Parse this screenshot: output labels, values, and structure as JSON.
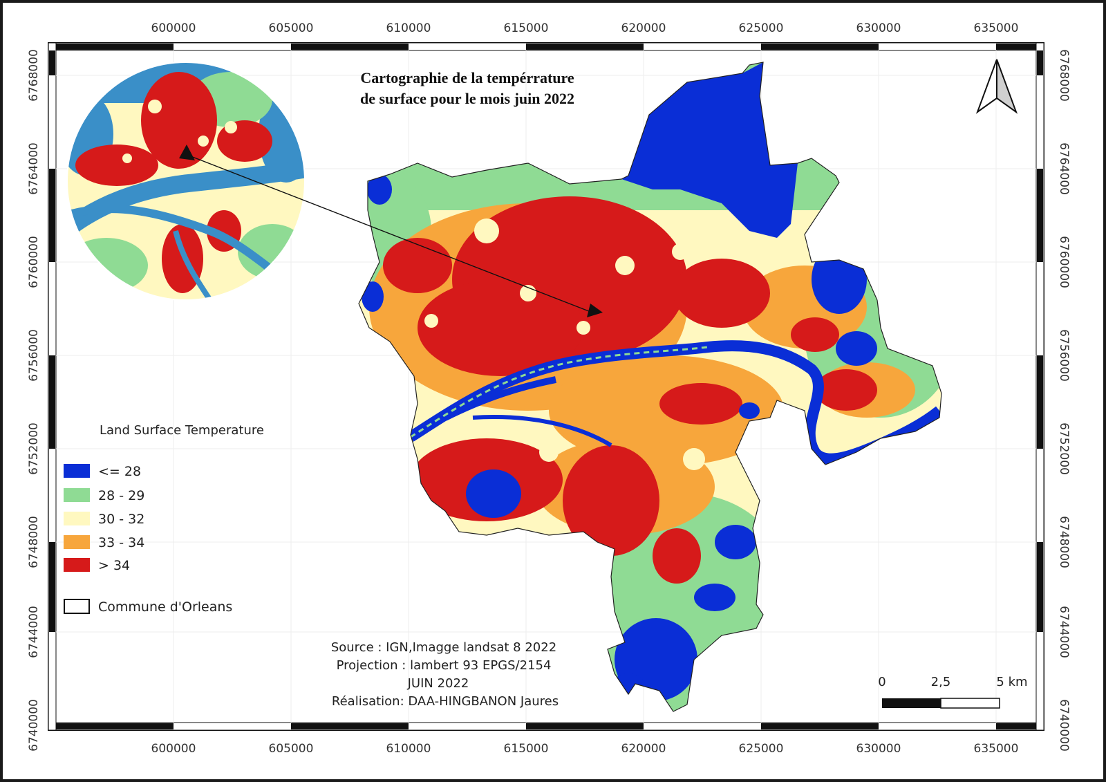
{
  "map": {
    "title_line1": "Cartographie de la tempérrature",
    "title_line2": "de surface pour le mois juin 2022",
    "x_ticks": [
      "600000",
      "605000",
      "610000",
      "615000",
      "620000",
      "625000",
      "630000",
      "635000"
    ],
    "y_ticks": [
      "6768000",
      "6764000",
      "6760000",
      "6756000",
      "6752000",
      "6748000",
      "6744000",
      "6740000"
    ]
  },
  "legend": {
    "title": "Land Surface Temperature",
    "items": [
      {
        "label": "<= 28",
        "color": "#0a2ed6"
      },
      {
        "label": "28 - 29",
        "color": "#8fdb94"
      },
      {
        "label": "30 - 32",
        "color": "#fff8c0"
      },
      {
        "label": "33 - 34",
        "color": "#f7a63c"
      },
      {
        "label": "> 34",
        "color": "#d61a1a"
      }
    ],
    "boundary_label": "Commune d'Orleans"
  },
  "credits": {
    "source": "Source : IGN,Imagge landsat 8 2022",
    "projection": "Projection : lambert 93 EPGS/2154",
    "date": "JUIN 2022",
    "author": "Réalisation: DAA-HINGBANON Jaures"
  },
  "scale_bar": {
    "labels": [
      "0",
      "2,5",
      "5 km"
    ]
  },
  "north_arrow": {
    "icon": "north-arrow-icon"
  },
  "inset": {
    "icon": "zoom-inset-circle"
  }
}
